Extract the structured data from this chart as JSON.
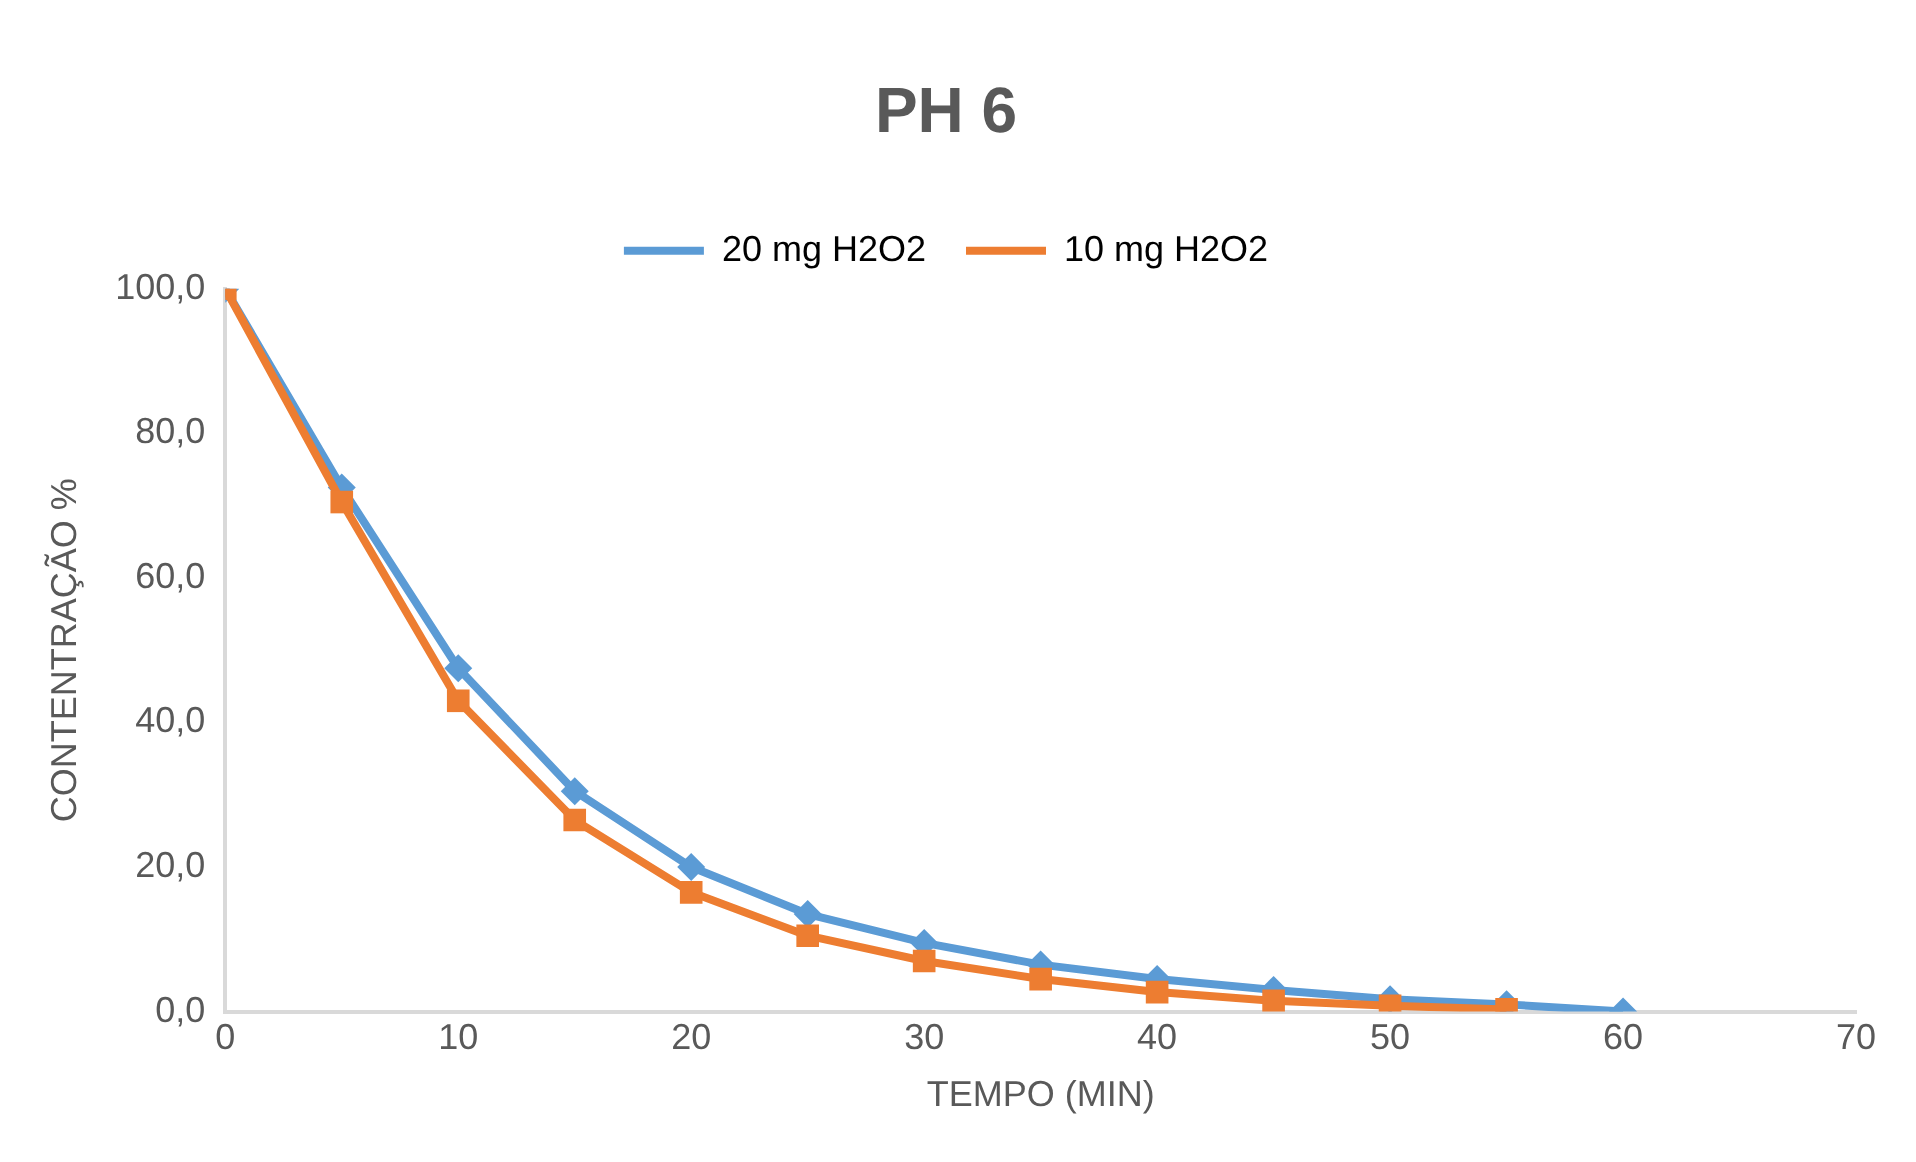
{
  "chart_data": {
    "type": "line",
    "title": "PH 6",
    "xlabel": "TEMPO (MIN)",
    "ylabel": "CONTENTRAÇÃO %",
    "legend": "top",
    "grid": false,
    "xlim": [
      0,
      70
    ],
    "xticks": [
      0,
      10,
      20,
      30,
      40,
      50,
      60,
      70
    ],
    "ylim": [
      0,
      100
    ],
    "yticks": [
      {
        "value": 0,
        "label": "0,0"
      },
      {
        "value": 20,
        "label": "20,0"
      },
      {
        "value": 40,
        "label": "40,0"
      },
      {
        "value": 60,
        "label": "60,0"
      },
      {
        "value": 80,
        "label": "80,0"
      },
      {
        "value": 100,
        "label": "100,0"
      }
    ],
    "series": [
      {
        "name": "20 mg H2O2",
        "color": "#5b9bd5",
        "marker": "diamond",
        "x": [
          0,
          5,
          10,
          15,
          20,
          25,
          30,
          35,
          40,
          45,
          50,
          55,
          60
        ],
        "values": [
          100,
          72.5,
          47.5,
          30.5,
          20,
          13.5,
          9.5,
          6.5,
          4.5,
          3,
          1.7,
          1,
          0
        ]
      },
      {
        "name": "10 mg H2O2",
        "color": "#ed7d31",
        "marker": "square",
        "x": [
          0,
          5,
          10,
          15,
          20,
          25,
          30,
          35,
          40,
          45,
          50,
          55
        ],
        "values": [
          100,
          70.5,
          43,
          26.5,
          16.5,
          10.5,
          7,
          4.5,
          2.7,
          1.5,
          0.8,
          0.3
        ]
      }
    ]
  }
}
